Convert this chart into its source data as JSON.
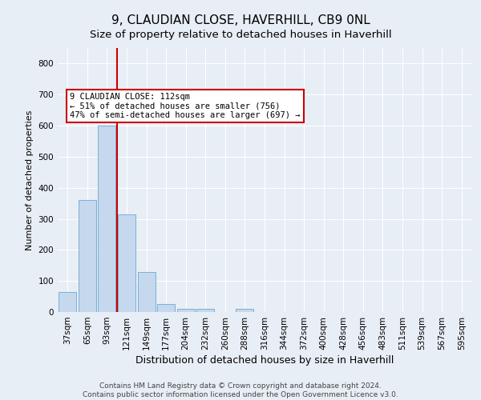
{
  "title1": "9, CLAUDIAN CLOSE, HAVERHILL, CB9 0NL",
  "title2": "Size of property relative to detached houses in Haverhill",
  "xlabel": "Distribution of detached houses by size in Haverhill",
  "ylabel": "Number of detached properties",
  "footer1": "Contains HM Land Registry data © Crown copyright and database right 2024.",
  "footer2": "Contains public sector information licensed under the Open Government Licence v3.0.",
  "categories": [
    "37sqm",
    "65sqm",
    "93sqm",
    "121sqm",
    "149sqm",
    "177sqm",
    "204sqm",
    "232sqm",
    "260sqm",
    "288sqm",
    "316sqm",
    "344sqm",
    "372sqm",
    "400sqm",
    "428sqm",
    "456sqm",
    "483sqm",
    "511sqm",
    "539sqm",
    "567sqm",
    "595sqm"
  ],
  "values": [
    65,
    360,
    600,
    315,
    130,
    25,
    10,
    10,
    0,
    10,
    0,
    0,
    0,
    0,
    0,
    0,
    0,
    0,
    0,
    0,
    0
  ],
  "bar_color": "#c5d8ee",
  "bar_edge_color": "#7aafd4",
  "bg_color": "#e8eef5",
  "grid_color": "#ffffff",
  "vline_x": 2.5,
  "vline_color": "#cc0000",
  "annotation_text": "9 CLAUDIAN CLOSE: 112sqm\n← 51% of detached houses are smaller (756)\n47% of semi-detached houses are larger (697) →",
  "annotation_box_color": "#ffffff",
  "annotation_border_color": "#cc0000",
  "ylim": [
    0,
    850
  ],
  "yticks": [
    0,
    100,
    200,
    300,
    400,
    500,
    600,
    700,
    800
  ],
  "title1_fontsize": 11,
  "title2_fontsize": 9.5,
  "xlabel_fontsize": 9,
  "ylabel_fontsize": 8,
  "tick_fontsize": 7.5,
  "footer_fontsize": 6.5,
  "annotation_fontsize": 7.5
}
